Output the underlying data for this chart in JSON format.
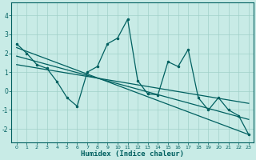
{
  "xlabel": "Humidex (Indice chaleur)",
  "xlim": [
    -0.5,
    23.5
  ],
  "ylim": [
    -2.7,
    4.7
  ],
  "yticks": [
    -2,
    -1,
    0,
    1,
    2,
    3,
    4
  ],
  "xticks": [
    0,
    1,
    2,
    3,
    4,
    5,
    6,
    7,
    8,
    9,
    10,
    11,
    12,
    13,
    14,
    15,
    16,
    17,
    18,
    19,
    20,
    21,
    22,
    23
  ],
  "background_color": "#c8ebe6",
  "grid_color": "#a0d0c8",
  "line_color": "#006060",
  "main_line_y": [
    2.5,
    2.0,
    1.4,
    1.2,
    0.5,
    -0.35,
    -0.8,
    1.0,
    1.3,
    2.5,
    2.8,
    3.8,
    0.55,
    -0.15,
    -0.2,
    1.55,
    1.3,
    2.2,
    -0.35,
    -1.0,
    -0.35,
    -1.0,
    -1.3,
    -2.3
  ],
  "line1_x": [
    0,
    23
  ],
  "line1_y": [
    2.3,
    -2.3
  ],
  "line2_x": [
    0,
    23
  ],
  "line2_y": [
    1.85,
    -1.5
  ],
  "line3_x": [
    0,
    23
  ],
  "line3_y": [
    1.4,
    -0.65
  ]
}
